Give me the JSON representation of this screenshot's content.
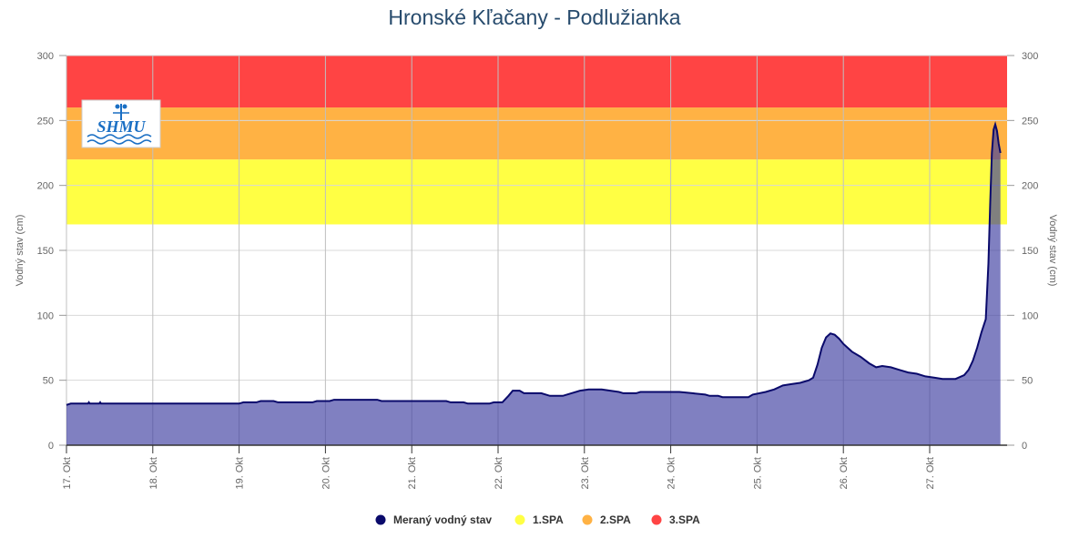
{
  "chart_data": {
    "type": "area",
    "title": "Hronské Kľačany - Podlužianka",
    "ylabel_left": "Vodný stav (cm)",
    "ylabel_right": "Vodný stav (cm)",
    "xlabel": "",
    "ylim": [
      0,
      300
    ],
    "yticks": [
      0,
      50,
      100,
      150,
      200,
      250,
      300
    ],
    "xlim": [
      17.0,
      27.82
    ],
    "xticks": [
      {
        "x": 17,
        "label": "17. Okt"
      },
      {
        "x": 18,
        "label": "18. Okt"
      },
      {
        "x": 19,
        "label": "19. Okt"
      },
      {
        "x": 20,
        "label": "20. Okt"
      },
      {
        "x": 21,
        "label": "21. Okt"
      },
      {
        "x": 22,
        "label": "22. Okt"
      },
      {
        "x": 23,
        "label": "23. Okt"
      },
      {
        "x": 24,
        "label": "24. Okt"
      },
      {
        "x": 25,
        "label": "25. Okt"
      },
      {
        "x": 26,
        "label": "26. Okt"
      },
      {
        "x": 27,
        "label": "27. Okt"
      }
    ],
    "grid": true,
    "legend_position": "bottom-center",
    "bands": [
      {
        "name": "1.SPA",
        "from": 170,
        "to": 220,
        "color": "#ffff44"
      },
      {
        "name": "2.SPA",
        "from": 220,
        "to": 260,
        "color": "#ffb244"
      },
      {
        "name": "3.SPA",
        "from": 260,
        "to": 300,
        "color": "#ff4444"
      }
    ],
    "series": [
      {
        "name": "Meraný vodný stav",
        "color": "#0a0a6b",
        "fill": "#3c3ca0",
        "points": [
          [
            17.0,
            31
          ],
          [
            17.05,
            32
          ],
          [
            17.25,
            32
          ],
          [
            17.26,
            33
          ],
          [
            17.27,
            32
          ],
          [
            17.38,
            32
          ],
          [
            17.39,
            33
          ],
          [
            17.4,
            32
          ],
          [
            19.0,
            32
          ],
          [
            19.05,
            33
          ],
          [
            19.2,
            33
          ],
          [
            19.25,
            34
          ],
          [
            19.4,
            34
          ],
          [
            19.45,
            33
          ],
          [
            19.85,
            33
          ],
          [
            19.9,
            34
          ],
          [
            20.05,
            34
          ],
          [
            20.1,
            35
          ],
          [
            20.6,
            35
          ],
          [
            20.65,
            34
          ],
          [
            21.4,
            34
          ],
          [
            21.45,
            33
          ],
          [
            21.6,
            33
          ],
          [
            21.65,
            32
          ],
          [
            21.9,
            32
          ],
          [
            21.95,
            33
          ],
          [
            22.05,
            33
          ],
          [
            22.12,
            38
          ],
          [
            22.17,
            42
          ],
          [
            22.25,
            42
          ],
          [
            22.3,
            40
          ],
          [
            22.5,
            40
          ],
          [
            22.6,
            38
          ],
          [
            22.75,
            38
          ],
          [
            22.85,
            40
          ],
          [
            22.95,
            42
          ],
          [
            23.05,
            43
          ],
          [
            23.2,
            43
          ],
          [
            23.3,
            42
          ],
          [
            23.4,
            41
          ],
          [
            23.45,
            40
          ],
          [
            23.6,
            40
          ],
          [
            23.65,
            41
          ],
          [
            24.1,
            41
          ],
          [
            24.25,
            40
          ],
          [
            24.4,
            39
          ],
          [
            24.45,
            38
          ],
          [
            24.55,
            38
          ],
          [
            24.6,
            37
          ],
          [
            24.9,
            37
          ],
          [
            24.95,
            39
          ],
          [
            25.1,
            41
          ],
          [
            25.2,
            43
          ],
          [
            25.3,
            46
          ],
          [
            25.4,
            47
          ],
          [
            25.5,
            48
          ],
          [
            25.6,
            50
          ],
          [
            25.65,
            52
          ],
          [
            25.7,
            62
          ],
          [
            25.75,
            75
          ],
          [
            25.8,
            83
          ],
          [
            25.85,
            86
          ],
          [
            25.9,
            85
          ],
          [
            25.95,
            82
          ],
          [
            26.0,
            78
          ],
          [
            26.1,
            72
          ],
          [
            26.2,
            68
          ],
          [
            26.3,
            63
          ],
          [
            26.38,
            60
          ],
          [
            26.45,
            61
          ],
          [
            26.55,
            60
          ],
          [
            26.65,
            58
          ],
          [
            26.75,
            56
          ],
          [
            26.85,
            55
          ],
          [
            26.95,
            53
          ],
          [
            27.05,
            52
          ],
          [
            27.15,
            51
          ],
          [
            27.3,
            51
          ],
          [
            27.4,
            54
          ],
          [
            27.45,
            58
          ],
          [
            27.5,
            65
          ],
          [
            27.55,
            75
          ],
          [
            27.6,
            87
          ],
          [
            27.65,
            97
          ],
          [
            27.68,
            140
          ],
          [
            27.7,
            185
          ],
          [
            27.72,
            225
          ],
          [
            27.74,
            243
          ],
          [
            27.76,
            247
          ],
          [
            27.78,
            242
          ],
          [
            27.8,
            232
          ],
          [
            27.82,
            225
          ]
        ]
      }
    ]
  },
  "legend": [
    {
      "label": "Meraný vodný stav",
      "color": "#0a0a6b"
    },
    {
      "label": "1.SPA",
      "color": "#ffff44"
    },
    {
      "label": "2.SPA",
      "color": "#ffb244"
    },
    {
      "label": "3.SPA",
      "color": "#ff4444"
    }
  ],
  "logo": {
    "text": "SHMU",
    "color": "#1a6fc4"
  }
}
